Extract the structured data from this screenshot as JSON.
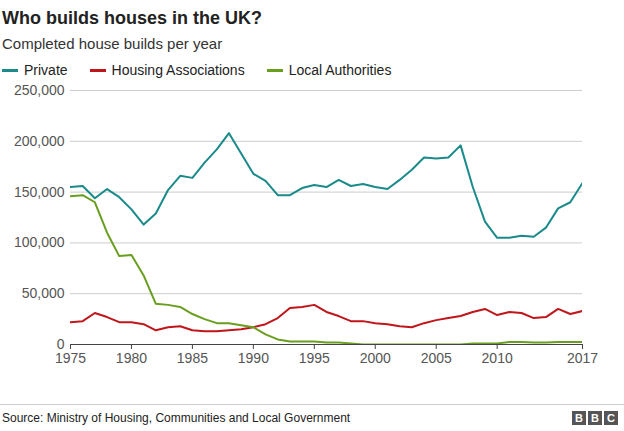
{
  "chart_data": {
    "type": "line",
    "title": "Who builds houses in the UK?",
    "subtitle": "Completed house builds per year",
    "source": "Source: Ministry of Housing, Communities and Local Government",
    "logo": "BBC",
    "legend": "top",
    "grid": true,
    "x": [
      1975,
      1976,
      1977,
      1978,
      1979,
      1980,
      1981,
      1982,
      1983,
      1984,
      1985,
      1986,
      1987,
      1988,
      1989,
      1990,
      1991,
      1992,
      1993,
      1994,
      1995,
      1996,
      1997,
      1998,
      1999,
      2000,
      2001,
      2002,
      2003,
      2004,
      2005,
      2006,
      2007,
      2008,
      2009,
      2010,
      2011,
      2012,
      2013,
      2014,
      2015,
      2016,
      2017
    ],
    "series": [
      {
        "name": "Private",
        "color": "#1a8a8a",
        "values": [
          155000,
          156000,
          144000,
          153000,
          145000,
          133000,
          118000,
          129000,
          152000,
          166000,
          164000,
          179000,
          192000,
          208000,
          188000,
          168000,
          161000,
          147000,
          147000,
          154000,
          157000,
          155000,
          162000,
          156000,
          158000,
          155000,
          153000,
          162000,
          172000,
          184000,
          183000,
          184000,
          196000,
          155000,
          121000,
          105000,
          105000,
          107000,
          106000,
          115000,
          134000,
          140000,
          159000
        ]
      },
      {
        "name": "Housing Associations",
        "color": "#c0161b",
        "values": [
          22000,
          23000,
          31000,
          27000,
          22000,
          22000,
          20000,
          14000,
          17000,
          18000,
          14000,
          13000,
          13000,
          14000,
          15000,
          17000,
          20000,
          26000,
          36000,
          37000,
          39000,
          32000,
          28000,
          23000,
          23000,
          21000,
          20000,
          18000,
          17000,
          21000,
          24000,
          26000,
          28000,
          32000,
          35000,
          29000,
          32000,
          31000,
          26000,
          27000,
          35000,
          30000,
          33000
        ]
      },
      {
        "name": "Local Authorities",
        "color": "#6a9e1f",
        "values": [
          146000,
          147000,
          140000,
          110000,
          87000,
          88000,
          68000,
          40000,
          39000,
          37000,
          30000,
          25000,
          21000,
          21000,
          19000,
          17000,
          10000,
          5000,
          3000,
          3000,
          3000,
          2000,
          2000,
          1000,
          0,
          0,
          0,
          0,
          0,
          0,
          0,
          0,
          0,
          1000,
          1000,
          1000,
          2500,
          2500,
          2000,
          2000,
          2500,
          2500,
          2500
        ]
      }
    ],
    "xlim": [
      1975,
      2017
    ],
    "xticks": [
      1975,
      1980,
      1985,
      1990,
      1995,
      2000,
      2005,
      2010,
      2017
    ],
    "ylim": [
      0,
      250000
    ],
    "yticks": [
      0,
      {
        "value": 50000,
        "label": "50,000"
      },
      {
        "value": 100000,
        "label": "100,000"
      },
      {
        "value": 150000,
        "label": "150,000"
      },
      {
        "value": 200000,
        "label": "200,000"
      },
      {
        "value": 250000,
        "label": "250,000"
      }
    ]
  }
}
